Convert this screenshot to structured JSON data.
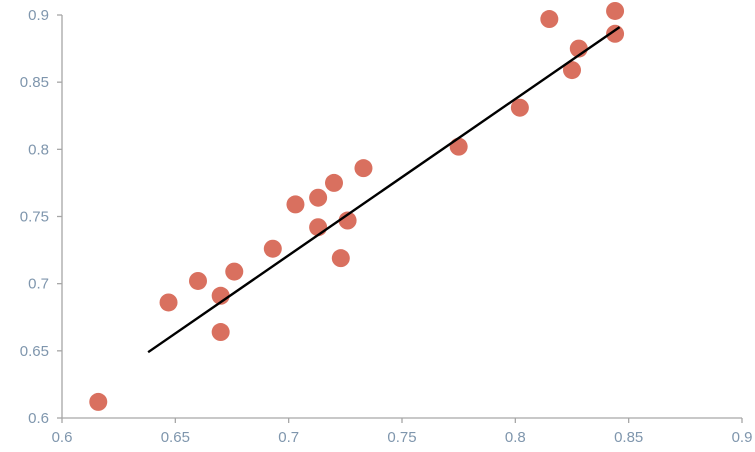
{
  "chart_data": {
    "type": "scatter",
    "title": "",
    "xlabel": "",
    "ylabel": "",
    "xlim": [
      0.6,
      0.9
    ],
    "ylim": [
      0.6,
      0.9
    ],
    "x_ticks": [
      "0.6",
      "0.65",
      "0.7",
      "0.75",
      "0.8",
      "0.85",
      "0.9"
    ],
    "y_ticks": [
      "0.6",
      "0.65",
      "0.7",
      "0.75",
      "0.8",
      "0.85",
      "0.9"
    ],
    "grid": false,
    "legend": "none",
    "colors": {
      "points": "#d9705f",
      "trendline": "#000000",
      "axis": "#a6a6a6",
      "tick_label": "#7f96ad"
    },
    "series": [
      {
        "points": [
          {
            "x": 0.616,
            "y": 0.612
          },
          {
            "x": 0.647,
            "y": 0.686
          },
          {
            "x": 0.66,
            "y": 0.702
          },
          {
            "x": 0.67,
            "y": 0.691
          },
          {
            "x": 0.67,
            "y": 0.664
          },
          {
            "x": 0.676,
            "y": 0.709
          },
          {
            "x": 0.693,
            "y": 0.726
          },
          {
            "x": 0.703,
            "y": 0.759
          },
          {
            "x": 0.713,
            "y": 0.764
          },
          {
            "x": 0.713,
            "y": 0.742
          },
          {
            "x": 0.72,
            "y": 0.775
          },
          {
            "x": 0.723,
            "y": 0.719
          },
          {
            "x": 0.726,
            "y": 0.747
          },
          {
            "x": 0.733,
            "y": 0.786
          },
          {
            "x": 0.775,
            "y": 0.802
          },
          {
            "x": 0.802,
            "y": 0.831
          },
          {
            "x": 0.815,
            "y": 0.897
          },
          {
            "x": 0.825,
            "y": 0.859
          },
          {
            "x": 0.828,
            "y": 0.875
          },
          {
            "x": 0.844,
            "y": 0.903
          },
          {
            "x": 0.844,
            "y": 0.886
          }
        ]
      }
    ],
    "trendline": {
      "x1": 0.638,
      "y1": 0.649,
      "x2": 0.846,
      "y2": 0.891
    }
  }
}
